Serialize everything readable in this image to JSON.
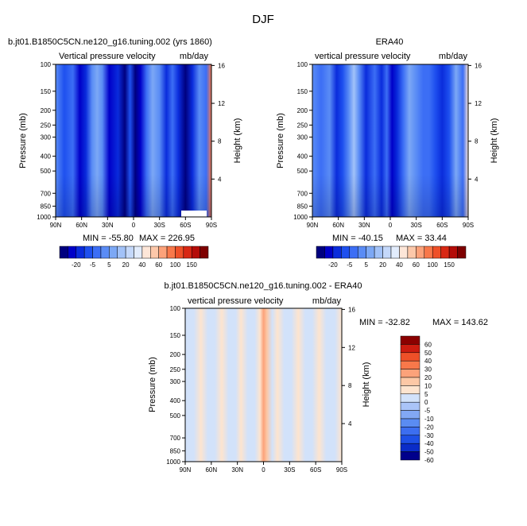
{
  "figure_title": "DJF",
  "palette": [
    "#00007f",
    "#0000c8",
    "#0a2cdc",
    "#1e50ef",
    "#3c6ef5",
    "#5a8cf5",
    "#7ca8f5",
    "#a2c2f8",
    "#c4d8fa",
    "#e2ecfc",
    "#fde6d8",
    "#fcc8aa",
    "#fca27a",
    "#f8784a",
    "#ee5028",
    "#d82814",
    "#b40c08",
    "#7e0000"
  ],
  "chart_data": [
    {
      "type": "heatmap",
      "title_left": "b.jt01.B1850C5CN.ne120_g16.tuning.002 (yrs 1860)",
      "subtitle_left": "Vertical pressure velocity",
      "subtitle_right": "mb/day",
      "ylabel": "Pressure (mb)",
      "ylabel_right": "Height (km)",
      "x_ticks": [
        "90N",
        "60N",
        "30N",
        "0",
        "30S",
        "60S",
        "90S"
      ],
      "y_ticks": [
        "100",
        "150",
        "200",
        "250",
        "300",
        "400",
        "500",
        "700",
        "850",
        "1000"
      ],
      "y_right_ticks": [
        "16",
        "12",
        "8",
        "4"
      ],
      "min_label": "MIN = -55.80",
      "max_label": "MAX = 226.95",
      "colorbar_labels": [
        "-20",
        "-5",
        "5",
        "20",
        "40",
        "60",
        "100",
        "150"
      ],
      "bands": [
        {
          "lat": 90,
          "value": -5
        },
        {
          "lat": 80,
          "value": -18
        },
        {
          "lat": 70,
          "value": -12
        },
        {
          "lat": 62,
          "value": -30
        },
        {
          "lat": 55,
          "value": -22
        },
        {
          "lat": 48,
          "value": -8
        },
        {
          "lat": 42,
          "value": -2
        },
        {
          "lat": 36,
          "value": -9
        },
        {
          "lat": 28,
          "value": -38
        },
        {
          "lat": 18,
          "value": -25
        },
        {
          "lat": 10,
          "value": -42
        },
        {
          "lat": 4,
          "value": -18
        },
        {
          "lat": -2,
          "value": -50
        },
        {
          "lat": -8,
          "value": -30
        },
        {
          "lat": -15,
          "value": -12
        },
        {
          "lat": -22,
          "value": -4
        },
        {
          "lat": -30,
          "value": -9
        },
        {
          "lat": -38,
          "value": -20
        },
        {
          "lat": -45,
          "value": -12
        },
        {
          "lat": -52,
          "value": -26
        },
        {
          "lat": -60,
          "value": -40
        },
        {
          "lat": -68,
          "value": -22
        },
        {
          "lat": -76,
          "value": -6
        },
        {
          "lat": -84,
          "value": -14
        },
        {
          "lat": -90,
          "value": 60
        }
      ]
    },
    {
      "type": "heatmap",
      "title": "ERA40",
      "subtitle_left": "vertical pressure velocity",
      "subtitle_right": "mb/day",
      "ylabel": "Pressure (mb)",
      "ylabel_right": "Height (km)",
      "x_ticks": [
        "90N",
        "60N",
        "30N",
        "0",
        "30S",
        "60S",
        "90S"
      ],
      "y_ticks": [
        "100",
        "150",
        "200",
        "250",
        "300",
        "400",
        "500",
        "700",
        "850",
        "1000"
      ],
      "y_right_ticks": [
        "16",
        "12",
        "8",
        "4"
      ],
      "min_label": "MIN = -40.15",
      "max_label": "MAX = 33.44",
      "colorbar_labels": [
        "-20",
        "-5",
        "5",
        "20",
        "40",
        "60",
        "100",
        "150"
      ],
      "bands": [
        {
          "lat": 90,
          "value": -8
        },
        {
          "lat": 80,
          "value": -14
        },
        {
          "lat": 70,
          "value": -8
        },
        {
          "lat": 62,
          "value": -24
        },
        {
          "lat": 55,
          "value": -18
        },
        {
          "lat": 48,
          "value": -6
        },
        {
          "lat": 42,
          "value": -1
        },
        {
          "lat": 36,
          "value": -6
        },
        {
          "lat": 28,
          "value": -22
        },
        {
          "lat": 18,
          "value": -14
        },
        {
          "lat": 10,
          "value": -26
        },
        {
          "lat": 4,
          "value": -12
        },
        {
          "lat": -2,
          "value": -36
        },
        {
          "lat": -8,
          "value": -22
        },
        {
          "lat": -15,
          "value": -10
        },
        {
          "lat": -22,
          "value": -2
        },
        {
          "lat": -30,
          "value": -6
        },
        {
          "lat": -38,
          "value": -14
        },
        {
          "lat": -45,
          "value": -10
        },
        {
          "lat": -52,
          "value": -18
        },
        {
          "lat": -60,
          "value": -28
        },
        {
          "lat": -68,
          "value": -16
        },
        {
          "lat": -76,
          "value": -4
        },
        {
          "lat": -84,
          "value": -10
        },
        {
          "lat": -90,
          "value": 8
        }
      ]
    },
    {
      "type": "heatmap",
      "title": "b.jt01.B1850C5CN.ne120_g16.tuning.002 - ERA40",
      "subtitle_left": "vertical pressure velocity",
      "subtitle_right": "mb/day",
      "ylabel": "Pressure (mb)",
      "ylabel_right": "Height (km)",
      "x_ticks": [
        "90N",
        "60N",
        "30N",
        "0",
        "30S",
        "60S",
        "90S"
      ],
      "y_ticks": [
        "100",
        "150",
        "200",
        "250",
        "300",
        "400",
        "500",
        "700",
        "850",
        "1000"
      ],
      "y_right_ticks": [
        "16",
        "12",
        "8",
        "4"
      ],
      "min_label": "MIN = -32.82",
      "max_label": "MAX = 143.62",
      "colorbar_labels": [
        "60",
        "50",
        "40",
        "30",
        "20",
        "10",
        "5",
        "0",
        "-5",
        "-10",
        "-20",
        "-30",
        "-40",
        "-50",
        "-60"
      ],
      "bands": [
        {
          "lat": 90,
          "value": -3
        },
        {
          "lat": 80,
          "value": -3
        },
        {
          "lat": 72,
          "value": 2
        },
        {
          "lat": 64,
          "value": -3
        },
        {
          "lat": 56,
          "value": -3
        },
        {
          "lat": 48,
          "value": 2
        },
        {
          "lat": 40,
          "value": -3
        },
        {
          "lat": 32,
          "value": -3
        },
        {
          "lat": 26,
          "value": 3
        },
        {
          "lat": 18,
          "value": -3
        },
        {
          "lat": 10,
          "value": -3
        },
        {
          "lat": 4,
          "value": 4
        },
        {
          "lat": 0,
          "value": 12
        },
        {
          "lat": -4,
          "value": 6
        },
        {
          "lat": -10,
          "value": -3
        },
        {
          "lat": -16,
          "value": 3
        },
        {
          "lat": -24,
          "value": -3
        },
        {
          "lat": -32,
          "value": -3
        },
        {
          "lat": -40,
          "value": 2
        },
        {
          "lat": -48,
          "value": -3
        },
        {
          "lat": -56,
          "value": -3
        },
        {
          "lat": -64,
          "value": 3
        },
        {
          "lat": -72,
          "value": -3
        },
        {
          "lat": -82,
          "value": -3
        },
        {
          "lat": -90,
          "value": 3
        }
      ]
    }
  ]
}
